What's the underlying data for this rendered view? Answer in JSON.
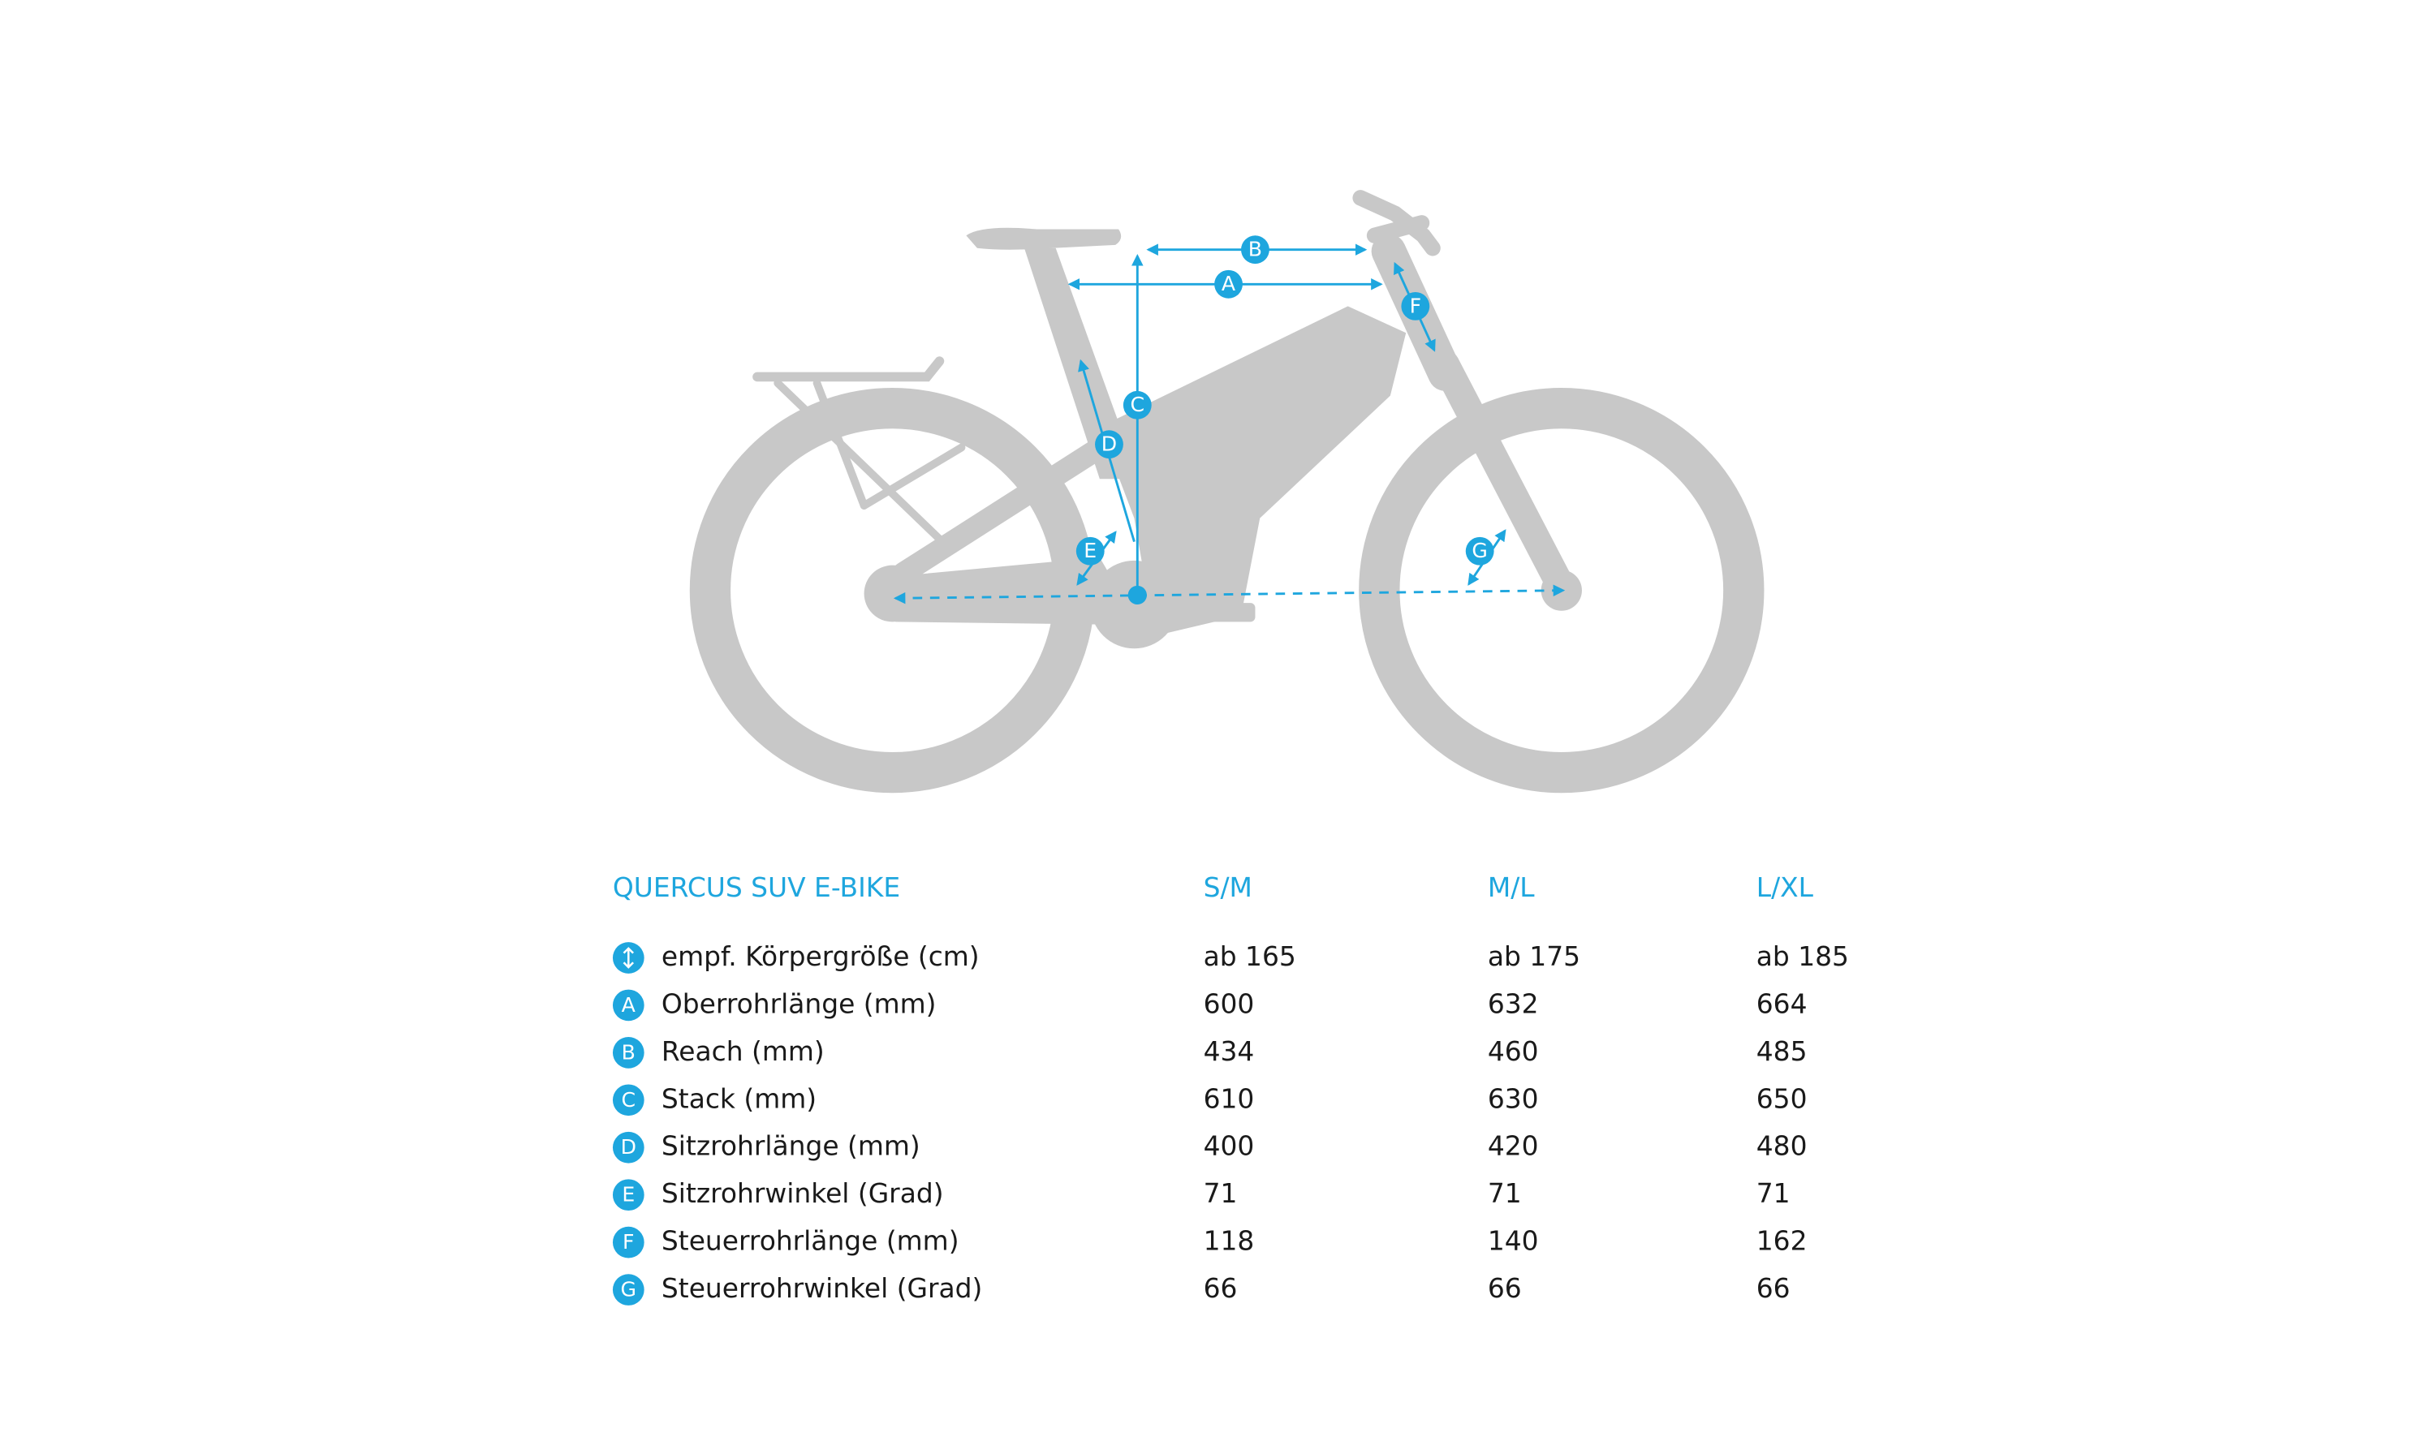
{
  "title": "QUERCUS SUV E-BIKE",
  "columns": [
    "S/M",
    "M/L",
    "L/XL"
  ],
  "rows": [
    {
      "label": "empf. Körpergröße (cm)",
      "values": [
        "ab 165",
        "ab 175",
        "ab 185"
      ]
    },
    {
      "marker": "A",
      "label": "Oberrohrlänge (mm)",
      "values": [
        600,
        632,
        664
      ]
    },
    {
      "marker": "B",
      "label": "Reach (mm)",
      "values": [
        434,
        460,
        485
      ]
    },
    {
      "marker": "C",
      "label": "Stack (mm)",
      "values": [
        610,
        630,
        650
      ]
    },
    {
      "marker": "D",
      "label": "Sitzrohrlänge (mm)",
      "values": [
        400,
        420,
        480
      ]
    },
    {
      "marker": "E",
      "label": "Sitzrohrwinkel (Grad)",
      "values": [
        71,
        71,
        71
      ]
    },
    {
      "marker": "F",
      "label": "Steuerrohrlänge (mm)",
      "values": [
        118,
        140,
        162
      ]
    },
    {
      "marker": "G",
      "label": "Steuerrohrwinkel (Grad)",
      "values": [
        66,
        66,
        66
      ]
    }
  ]
}
